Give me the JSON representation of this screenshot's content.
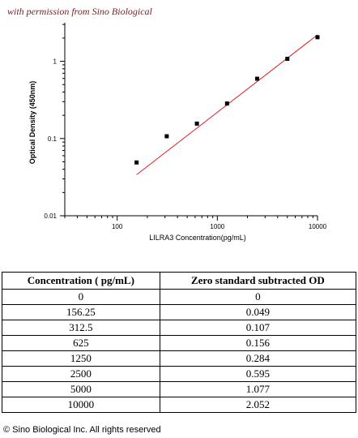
{
  "header": {
    "permission_text": "with permission from Sino Biological"
  },
  "chart_data": {
    "type": "scatter",
    "xlabel": "LILRA3  Concentration(pg/mL)",
    "ylabel": "Optical Density (450nm)",
    "x_scale": "log",
    "y_scale": "log",
    "xlim": [
      30,
      10000
    ],
    "ylim": [
      0.01,
      3.16
    ],
    "x_ticks": [
      100,
      1000,
      10000
    ],
    "x_tick_labels": [
      "100",
      "1000",
      "10000"
    ],
    "y_ticks": [
      0.01,
      0.1,
      1
    ],
    "y_tick_labels": [
      "0.01",
      "0.1",
      "1"
    ],
    "series": [
      {
        "x": [
          156.25,
          312.5,
          625,
          1250,
          2500,
          5000,
          10000
        ],
        "y": [
          0.049,
          0.107,
          0.156,
          0.284,
          0.595,
          1.077,
          2.052
        ]
      }
    ],
    "fit_line": {
      "x": [
        156.25,
        10000
      ],
      "y": [
        0.034,
        2.2
      ]
    },
    "colors": {
      "points": "#000000",
      "fit": "#e02020",
      "axis": "#000000"
    },
    "grid": false
  },
  "table": {
    "headers": [
      "Concentration ( pg/mL)",
      "Zero standard subtracted OD"
    ],
    "rows": [
      [
        "0",
        "0"
      ],
      [
        "156.25",
        "0.049"
      ],
      [
        "312.5",
        "0.107"
      ],
      [
        "625",
        "0.156"
      ],
      [
        "1250",
        "0.284"
      ],
      [
        "2500",
        "0.595"
      ],
      [
        "5000",
        "1.077"
      ],
      [
        "10000",
        "2.052"
      ]
    ]
  },
  "footer": {
    "copyright": "© Sino Biological Inc. All rights reserved"
  }
}
